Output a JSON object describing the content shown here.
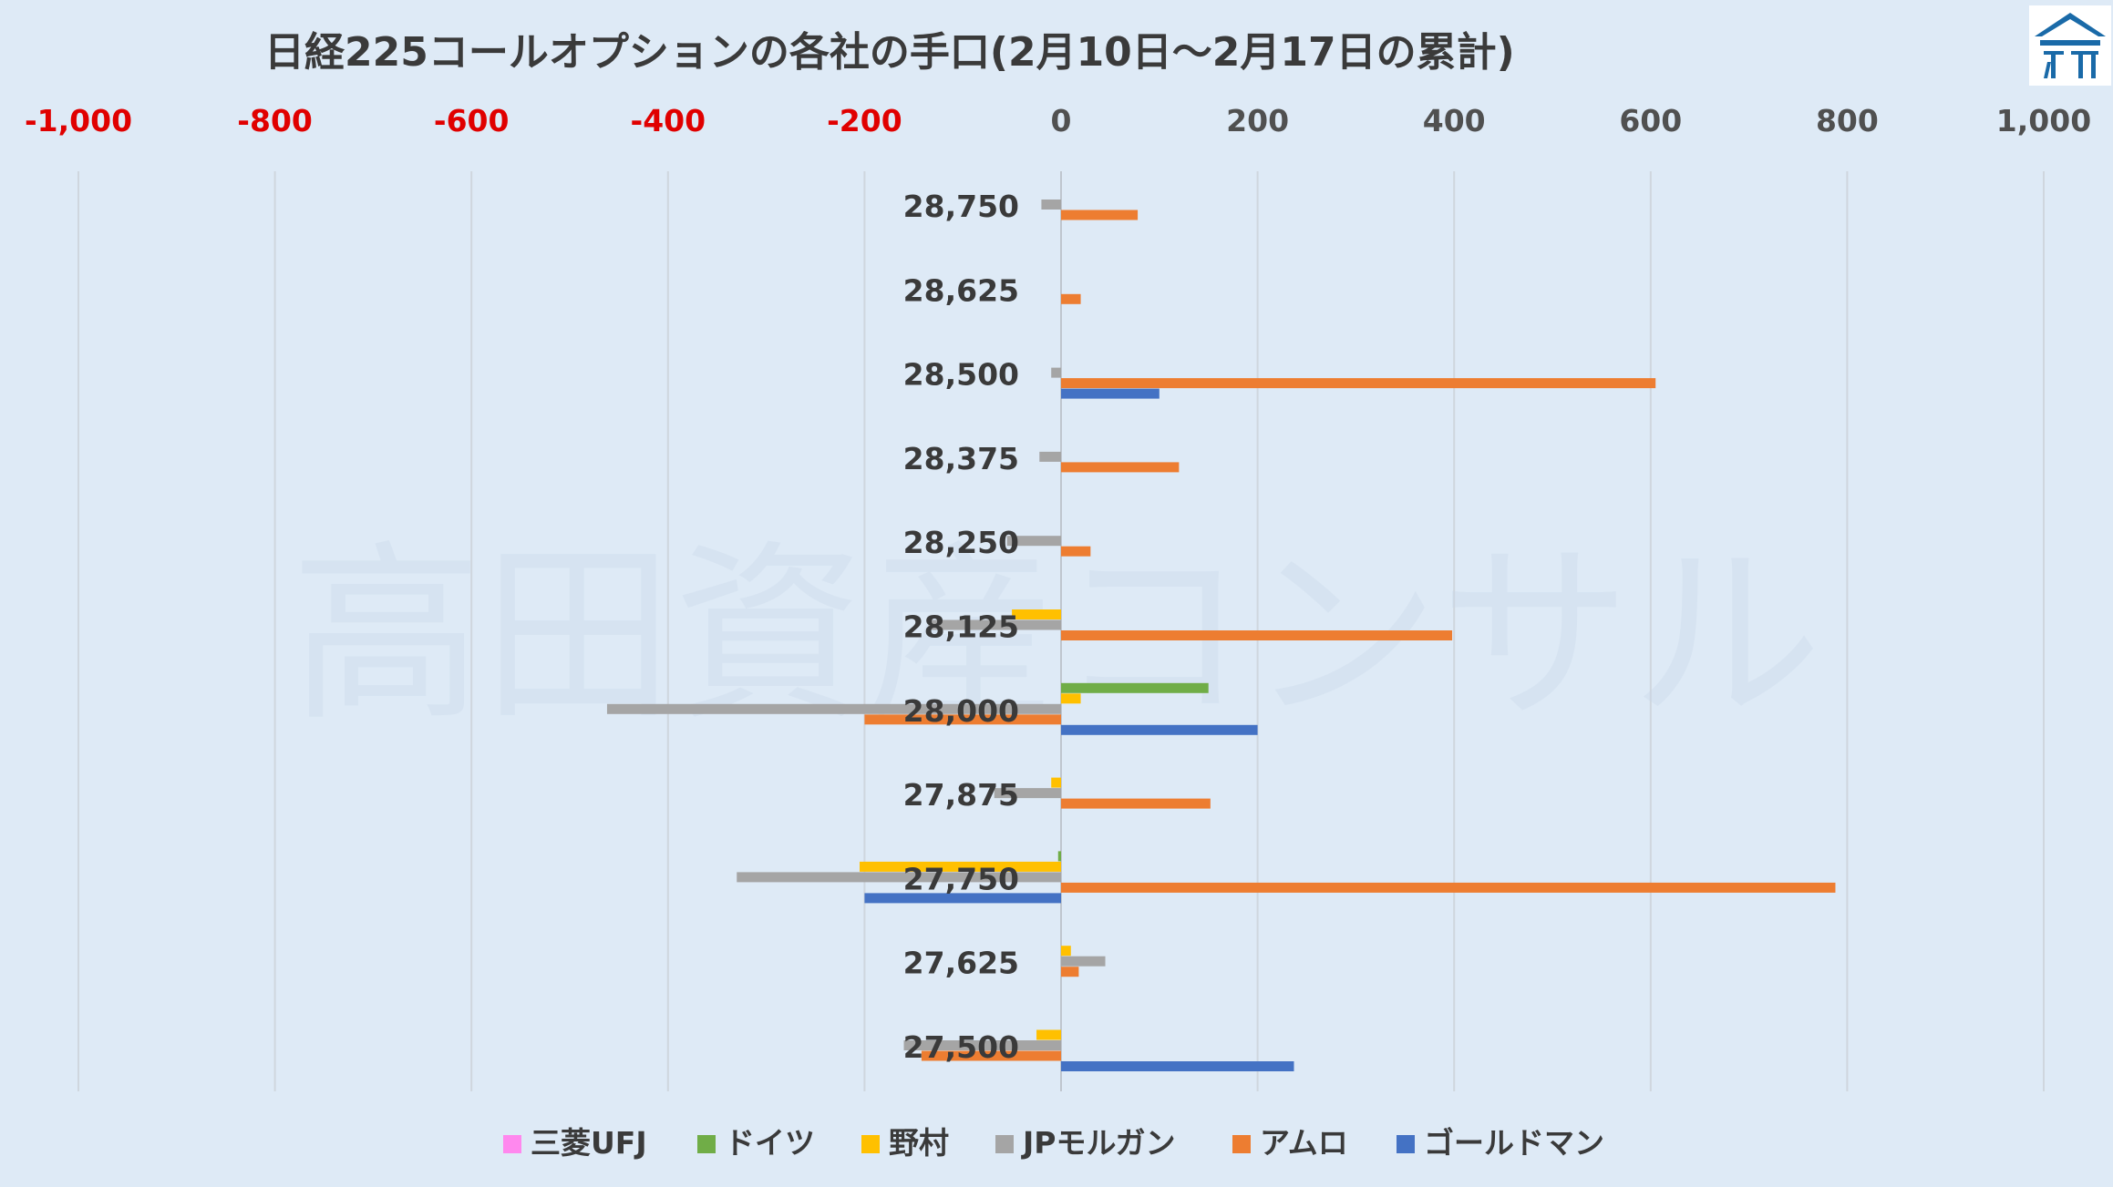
{
  "watermark_text": "高田資産コンサル",
  "chart_data": {
    "type": "bar",
    "orientation": "horizontal",
    "title": "日経225コールオプションの各社の手口(2月10日～2月17日の累計)",
    "xlabel": "",
    "ylabel": "",
    "xlim": [
      -1000,
      1000
    ],
    "xticks": [
      "-1,000",
      "-800",
      "-600",
      "-400",
      "-200",
      "0",
      "200",
      "400",
      "600",
      "800",
      "1,000"
    ],
    "xtick_values": [
      -1000,
      -800,
      -600,
      -400,
      -200,
      0,
      200,
      400,
      600,
      800,
      1000
    ],
    "negative_tick_color": "#e00000",
    "positive_tick_color": "#505050",
    "grid": true,
    "legend_position": "bottom",
    "categories": [
      "28,750",
      "28,625",
      "28,500",
      "28,375",
      "28,250",
      "28,125",
      "28,000",
      "27,875",
      "27,750",
      "27,625",
      "27,500"
    ],
    "series": [
      {
        "name": "三菱UFJ",
        "color": "#ff88ee",
        "values": [
          0,
          0,
          0,
          0,
          0,
          0,
          0,
          0,
          0,
          0,
          0
        ]
      },
      {
        "name": "ドイツ",
        "color": "#70ad47",
        "values": [
          0,
          0,
          0,
          0,
          0,
          0,
          150,
          0,
          -3,
          0,
          0
        ]
      },
      {
        "name": "野村",
        "color": "#ffc000",
        "values": [
          0,
          0,
          0,
          0,
          0,
          -50,
          20,
          -10,
          -205,
          10,
          -25
        ]
      },
      {
        "name": "JPモルガン",
        "color": "#a5a5a5",
        "values": [
          -20,
          0,
          -10,
          -22,
          -55,
          -135,
          -462,
          -68,
          -330,
          45,
          -160
        ]
      },
      {
        "name": "アムロ",
        "color": "#ed7d31",
        "values": [
          78,
          20,
          605,
          120,
          30,
          398,
          -200,
          152,
          788,
          18,
          -142
        ]
      },
      {
        "name": "ゴールドマン",
        "color": "#4472c4",
        "values": [
          0,
          0,
          100,
          0,
          0,
          0,
          200,
          0,
          -200,
          0,
          237
        ]
      }
    ]
  }
}
